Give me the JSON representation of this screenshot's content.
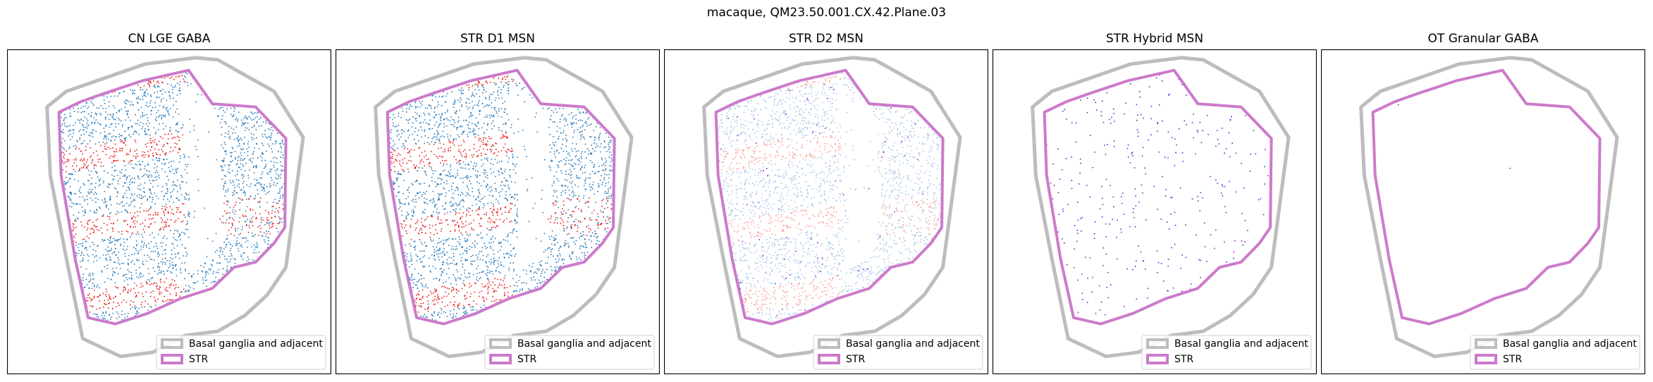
{
  "suptitle": "macaque, QM23.50.001.CX.42.Plane.03",
  "legend_entries": [
    {
      "label": "Basal ganglia and adjacent",
      "color": "#bdbdbd"
    },
    {
      "label": "STR",
      "color": "#cc7acb"
    }
  ],
  "colors": {
    "red": "#e4201c",
    "blue": "#2a7ab8",
    "light_red": "#f7a29e",
    "light_blue": "#a8c6e6",
    "purple": "#7b1fd6",
    "dark_blue": "#1f3fb8"
  },
  "chart_data": [
    {
      "type": "scatter",
      "title": "CN LGE GABA",
      "density": "dense",
      "series_colors": [
        "red",
        "blue"
      ],
      "xlabel": "",
      "ylabel": "",
      "grid": false,
      "ticks": false,
      "legend_position": "lower-right"
    },
    {
      "type": "scatter",
      "title": "STR D1 MSN",
      "density": "dense",
      "series_colors": [
        "red",
        "blue"
      ],
      "xlabel": "",
      "ylabel": "",
      "grid": false,
      "ticks": false,
      "legend_position": "lower-right"
    },
    {
      "type": "scatter",
      "title": "STR D2 MSN",
      "density": "dense",
      "series_colors": [
        "light_red",
        "light_blue",
        "purple"
      ],
      "xlabel": "",
      "ylabel": "",
      "grid": false,
      "ticks": false,
      "legend_position": "lower-right"
    },
    {
      "type": "scatter",
      "title": "STR Hybrid MSN",
      "density": "sparse",
      "series_colors": [
        "purple",
        "dark_blue"
      ],
      "xlabel": "",
      "ylabel": "",
      "grid": false,
      "ticks": false,
      "legend_position": "lower-right"
    },
    {
      "type": "scatter",
      "title": "OT Granular GABA",
      "density": "near-empty",
      "series_colors": [
        "purple"
      ],
      "xlabel": "",
      "ylabel": "",
      "grid": false,
      "ticks": false,
      "legend_position": "lower-right"
    }
  ]
}
